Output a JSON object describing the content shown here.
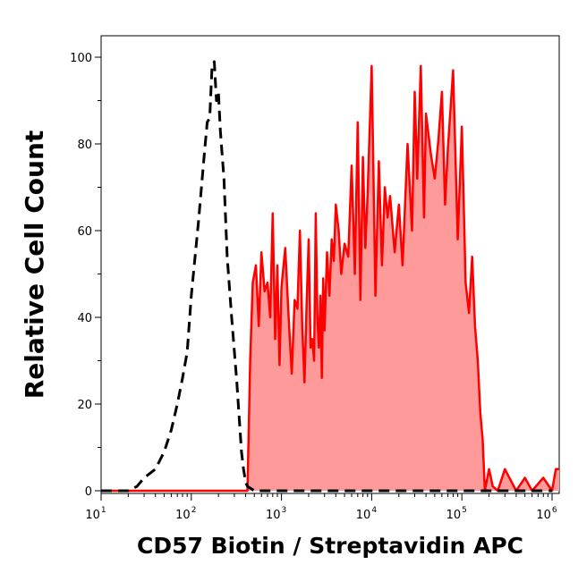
{
  "chart_data": {
    "type": "area",
    "xlabel": "CD57 Biotin / Streptavidin APC",
    "ylabel": "Relative Cell Count",
    "x_scale": "log",
    "xlim": [
      10,
      1200000
    ],
    "ylim": [
      0,
      100
    ],
    "y_ticks": [
      0,
      20,
      40,
      60,
      80,
      100
    ],
    "x_ticks": [
      {
        "base": "10",
        "exp": "1",
        "value": 10
      },
      {
        "base": "10",
        "exp": "2",
        "value": 100
      },
      {
        "base": "10",
        "exp": "3",
        "value": 1000
      },
      {
        "base": "10",
        "exp": "4",
        "value": 10000
      },
      {
        "base": "10",
        "exp": "5",
        "value": 100000
      },
      {
        "base": "10",
        "exp": "6",
        "value": 1000000
      }
    ],
    "grid": false,
    "series": [
      {
        "style": "dashed",
        "color": "#000000",
        "fill": "none",
        "x": [
          10,
          20,
          25,
          30,
          40,
          50,
          60,
          70,
          80,
          90,
          100,
          120,
          140,
          150,
          160,
          170,
          180,
          190,
          200,
          210,
          230,
          250,
          280,
          320,
          360,
          380,
          400,
          420,
          500,
          1000,
          10000,
          1000000
        ],
        "y": [
          0,
          0,
          1,
          3,
          5,
          9,
          14,
          20,
          26,
          32,
          45,
          62,
          78,
          85,
          86,
          98,
          99,
          90,
          92,
          83,
          72,
          54,
          40,
          25,
          9,
          5,
          2,
          1,
          0,
          0,
          0,
          0
        ]
      },
      {
        "style": "solid",
        "color": "#ff0000",
        "fill": "#ff9a9a",
        "x": [
          10,
          300,
          420,
          450,
          480,
          520,
          560,
          600,
          650,
          700,
          750,
          800,
          850,
          900,
          950,
          1000,
          1100,
          1200,
          1300,
          1400,
          1500,
          1600,
          1700,
          1800,
          1900,
          2000,
          2100,
          2200,
          2300,
          2400,
          2500,
          2600,
          2700,
          2800,
          2900,
          3000,
          3200,
          3400,
          3600,
          3800,
          4000,
          4300,
          4600,
          5000,
          5500,
          6000,
          6500,
          7000,
          7500,
          8000,
          8500,
          9000,
          10000,
          11000,
          12000,
          13000,
          14000,
          15000,
          16000,
          18000,
          20000,
          22000,
          25000,
          28000,
          30000,
          32000,
          35000,
          38000,
          40000,
          45000,
          50000,
          55000,
          60000,
          65000,
          70000,
          80000,
          90000,
          100000,
          110000,
          120000,
          130000,
          140000,
          150000,
          160000,
          170000,
          180000,
          200000,
          220000,
          250000,
          300000,
          400000,
          500000,
          600000,
          800000,
          1000000,
          1100000,
          1200000
        ],
        "y": [
          0,
          0,
          0,
          30,
          48,
          52,
          38,
          55,
          46,
          48,
          40,
          64,
          35,
          52,
          29,
          47,
          56,
          40,
          27,
          44,
          42,
          60,
          38,
          25,
          43,
          58,
          33,
          35,
          30,
          64,
          40,
          33,
          45,
          26,
          49,
          37,
          55,
          45,
          58,
          53,
          66,
          60,
          50,
          57,
          54,
          75,
          50,
          85,
          44,
          77,
          56,
          68,
          98,
          45,
          76,
          52,
          70,
          63,
          68,
          55,
          66,
          52,
          80,
          60,
          92,
          72,
          98,
          63,
          87,
          78,
          72,
          81,
          92,
          66,
          79,
          97,
          58,
          84,
          48,
          41,
          54,
          38,
          30,
          18,
          12,
          0,
          5,
          1,
          0,
          5,
          0,
          3,
          0,
          3,
          0,
          5,
          5
        ]
      }
    ]
  }
}
